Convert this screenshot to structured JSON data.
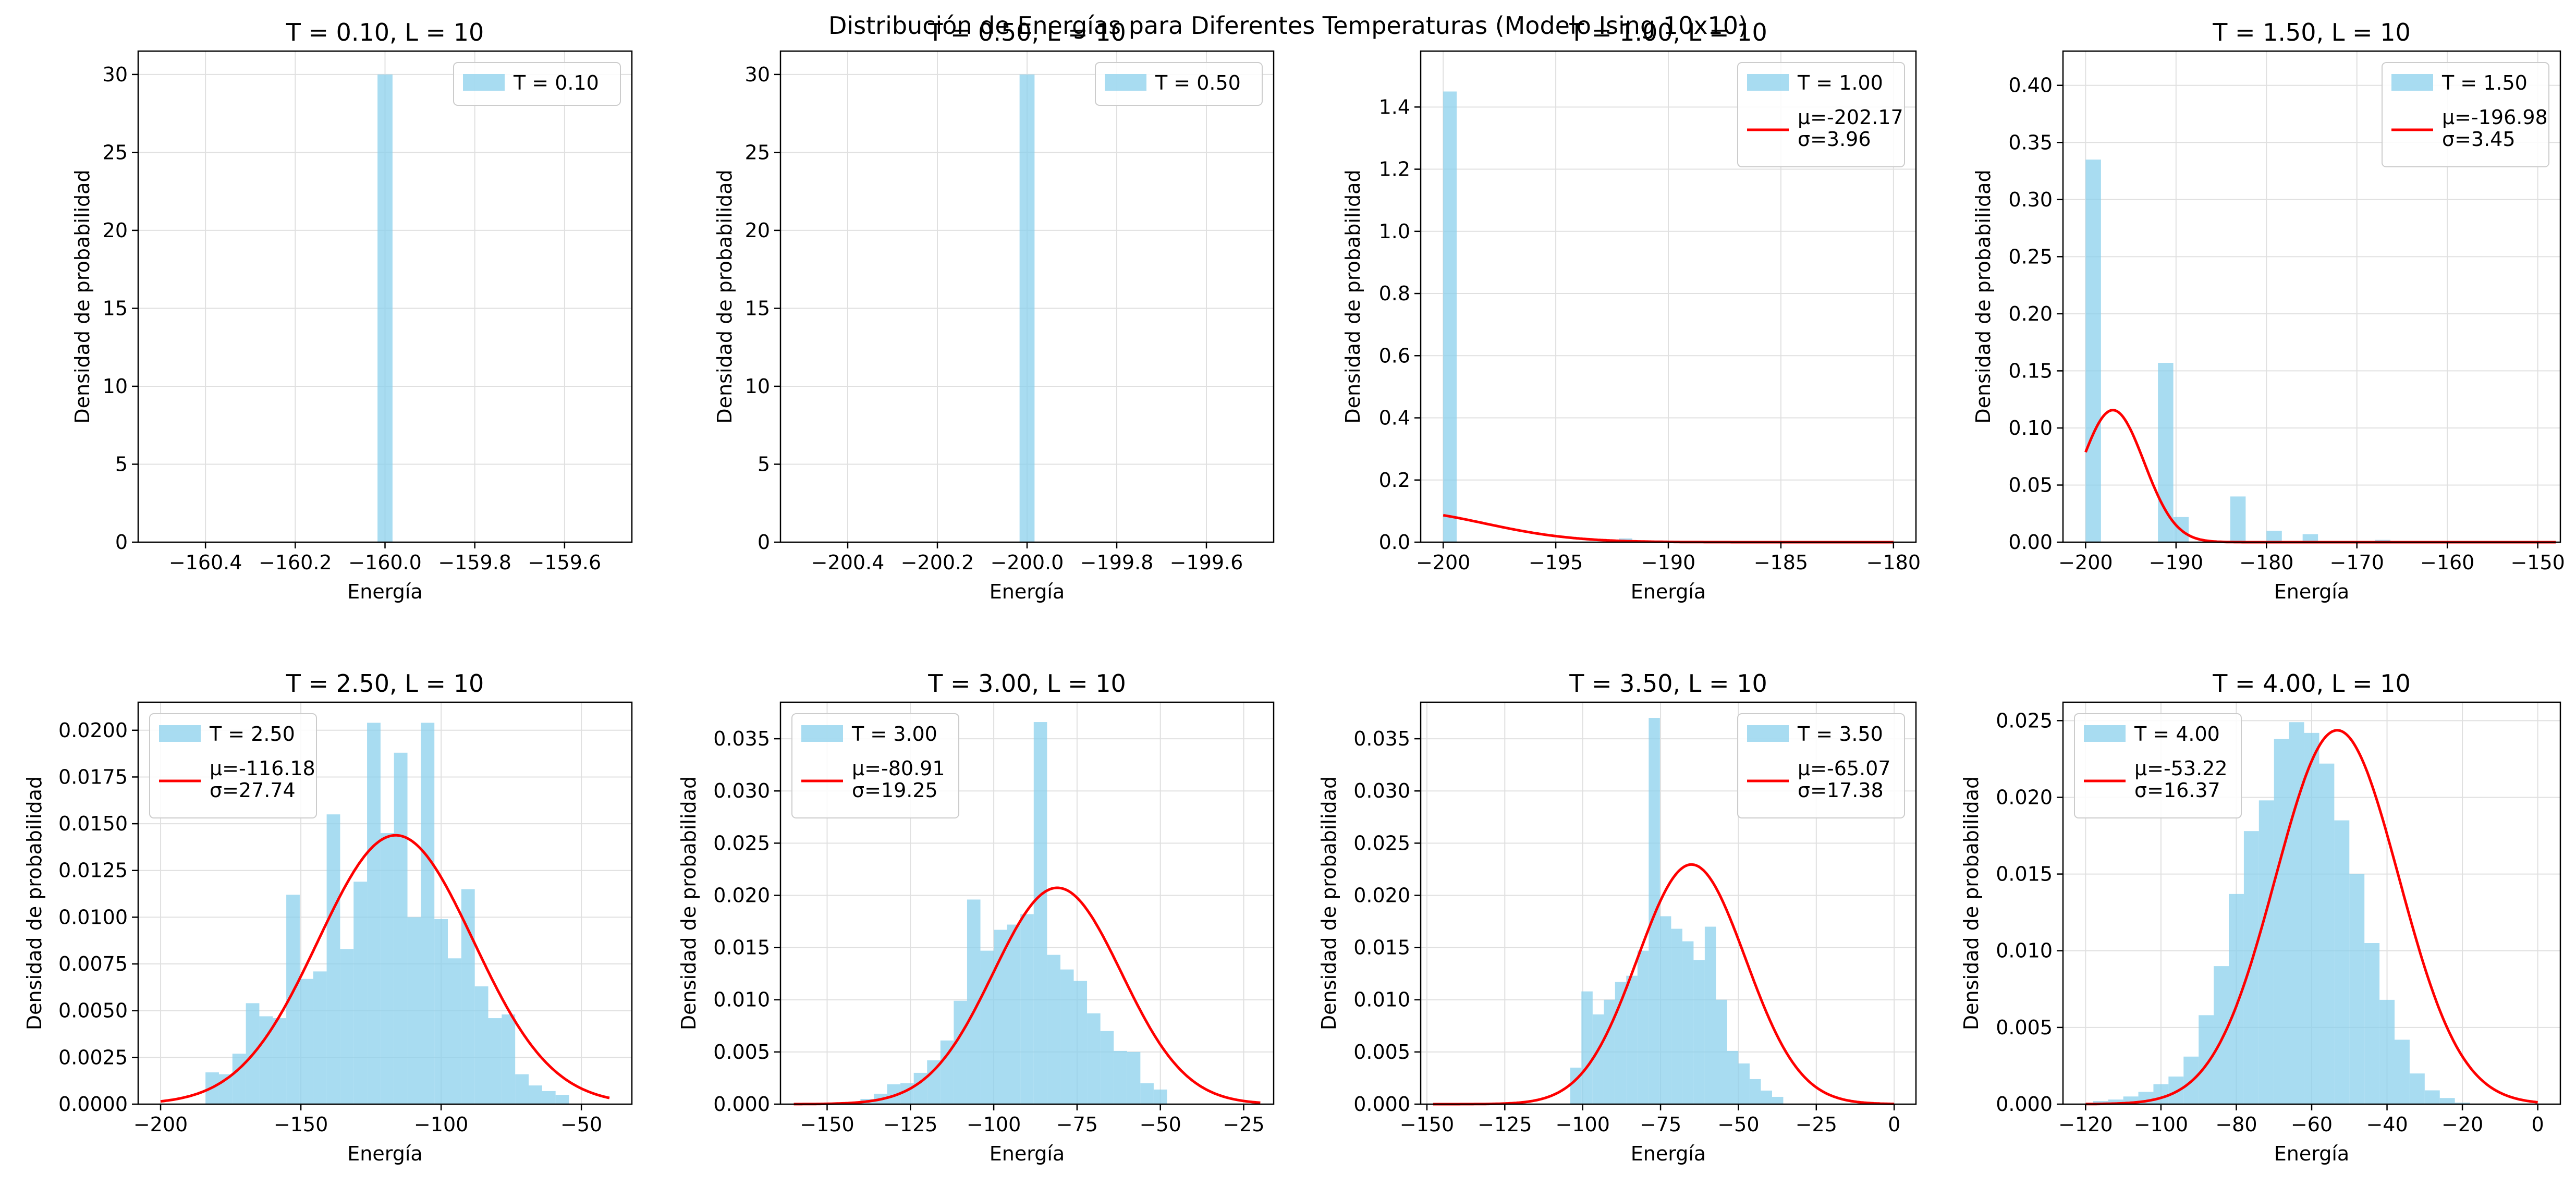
{
  "figure": {
    "suptitle": "Distribución de Energías para Diferentes Temperaturas (Modelo Ising 10x10)",
    "colors": {
      "bars": "#87CEEB",
      "fit_line": "#FF0000",
      "grid": "#E0E0E0"
    }
  },
  "chart_data": [
    {
      "type": "bar",
      "title": "T = 0.10, L = 10",
      "xlabel": "Energía",
      "ylabel": "Densidad de probabilidad",
      "xlim": [
        -160.55,
        -159.45
      ],
      "ylim": [
        0,
        31.5
      ],
      "xticks": [
        -160.4,
        -160.2,
        -160.0,
        -159.8,
        -159.6
      ],
      "xtick_labels": [
        "−160.4",
        "−160.2",
        "−160.0",
        "−159.8",
        "−159.6"
      ],
      "yticks": [
        0,
        5,
        10,
        15,
        20,
        25,
        30
      ],
      "ytick_labels": [
        "0",
        "5",
        "10",
        "15",
        "20",
        "25",
        "30"
      ],
      "legend": {
        "position": "upper-right",
        "hist_label": "T = 0.10"
      },
      "histogram": {
        "bins": [
          [
            -160.0167,
            -159.9833,
            30
          ]
        ]
      }
    },
    {
      "type": "bar",
      "title": "T = 0.50, L = 10",
      "xlabel": "Energía",
      "ylabel": "Densidad de probabilidad",
      "xlim": [
        -200.55,
        -199.45
      ],
      "ylim": [
        0,
        31.5
      ],
      "xticks": [
        -200.4,
        -200.2,
        -200.0,
        -199.8,
        -199.6
      ],
      "xtick_labels": [
        "−200.4",
        "−200.2",
        "−200.0",
        "−199.8",
        "−199.6"
      ],
      "yticks": [
        0,
        5,
        10,
        15,
        20,
        25,
        30
      ],
      "ytick_labels": [
        "0",
        "5",
        "10",
        "15",
        "20",
        "25",
        "30"
      ],
      "legend": {
        "position": "upper-right",
        "hist_label": "T = 0.50"
      },
      "histogram": {
        "bins": [
          [
            -200.0167,
            -199.9833,
            30
          ]
        ]
      }
    },
    {
      "type": "bar",
      "title": "T = 1.00, L = 10",
      "xlabel": "Energía",
      "ylabel": "Densidad de probabilidad",
      "xlim": [
        -201.0,
        -179.0
      ],
      "ylim": [
        0,
        1.58
      ],
      "xticks": [
        -200,
        -195,
        -190,
        -185,
        -180
      ],
      "xtick_labels": [
        "−200",
        "−195",
        "−190",
        "−185",
        "−180"
      ],
      "yticks": [
        0,
        0.2,
        0.4,
        0.6,
        0.8,
        1.0,
        1.2,
        1.4
      ],
      "ytick_labels": [
        "0.0",
        "0.2",
        "0.4",
        "0.6",
        "0.8",
        "1.0",
        "1.2",
        "1.4"
      ],
      "legend": {
        "position": "upper-right",
        "hist_label": "T = 1.00",
        "fit_label": [
          "μ=-202.17",
          "σ=3.96"
        ]
      },
      "histogram": {
        "bins": [
          [
            -200.0,
            -199.4,
            1.45
          ],
          [
            -192.2,
            -191.6,
            0.012
          ]
        ]
      },
      "fit": {
        "mu": -202.17,
        "sigma": 3.96,
        "x_range": [
          -200,
          -180
        ]
      }
    },
    {
      "type": "bar",
      "title": "T = 1.50, L = 10",
      "xlabel": "Energía",
      "ylabel": "Densidad de probabilidad",
      "xlim": [
        -202.5,
        -147.5
      ],
      "ylim": [
        0,
        0.43
      ],
      "xticks": [
        -200,
        -190,
        -180,
        -170,
        -160,
        -150
      ],
      "xtick_labels": [
        "−200",
        "−190",
        "−180",
        "−170",
        "−160",
        "−150"
      ],
      "yticks": [
        0,
        0.05,
        0.1,
        0.15,
        0.2,
        0.25,
        0.3,
        0.35,
        0.4
      ],
      "ytick_labels": [
        "0.00",
        "0.05",
        "0.10",
        "0.15",
        "0.20",
        "0.25",
        "0.30",
        "0.35",
        "0.40"
      ],
      "legend": {
        "position": "upper-right",
        "hist_label": "T = 1.50",
        "fit_label": [
          "μ=-196.98",
          "σ=3.45"
        ]
      },
      "histogram": {
        "bins": [
          [
            -200.0,
            -198.3,
            0.335
          ],
          [
            -192.0,
            -190.3,
            0.157
          ],
          [
            -190.3,
            -188.6,
            0.022
          ],
          [
            -184.0,
            -182.3,
            0.04
          ],
          [
            -180.0,
            -178.3,
            0.01
          ],
          [
            -176.0,
            -174.3,
            0.007
          ],
          [
            -168.0,
            -166.3,
            0.002
          ]
        ]
      },
      "fit": {
        "mu": -196.98,
        "sigma": 3.45,
        "x_range": [
          -200,
          -148
        ]
      }
    },
    {
      "type": "bar",
      "title": "T = 2.50, L = 10",
      "xlabel": "Energía",
      "ylabel": "Densidad de probabilidad",
      "xlim": [
        -208.0,
        -32.0
      ],
      "ylim": [
        0,
        0.0215
      ],
      "xticks": [
        -200,
        -150,
        -100,
        -50
      ],
      "xtick_labels": [
        "−200",
        "−150",
        "−100",
        "−50"
      ],
      "yticks": [
        0,
        0.0025,
        0.005,
        0.0075,
        0.01,
        0.0125,
        0.015,
        0.0175,
        0.02
      ],
      "ytick_labels": [
        "0.0000",
        "0.0025",
        "0.0050",
        "0.0075",
        "0.0100",
        "0.0125",
        "0.0150",
        "0.0175",
        "0.0200"
      ],
      "legend": {
        "position": "upper-left",
        "hist_label": "T = 2.50",
        "fit_label": [
          "μ=-116.18",
          "σ=27.74"
        ]
      },
      "histogram": {
        "start": -184,
        "width": 4.8,
        "values": [
          0.0017,
          0.0016,
          0.0027,
          0.0054,
          0.0047,
          0.0046,
          0.0112,
          0.0067,
          0.0071,
          0.0155,
          0.0083,
          0.0119,
          0.0204,
          0.0145,
          0.0188,
          0.01,
          0.0204,
          0.0099,
          0.0078,
          0.0115,
          0.0063,
          0.0046,
          0.0048,
          0.0016,
          0.001,
          0.0007,
          0.0005
        ]
      },
      "fit": {
        "mu": -116.18,
        "sigma": 27.74,
        "x_range": [
          -200,
          -40
        ]
      }
    },
    {
      "type": "bar",
      "title": "T = 3.00, L = 10",
      "xlabel": "Energía",
      "ylabel": "Densidad de probabilidad",
      "xlim": [
        -164.0,
        -16.0
      ],
      "ylim": [
        0,
        0.0385
      ],
      "xticks": [
        -150,
        -125,
        -100,
        -75,
        -50,
        -25
      ],
      "xtick_labels": [
        "−150",
        "−125",
        "−100",
        "−75",
        "−50",
        "−25"
      ],
      "yticks": [
        0,
        0.005,
        0.01,
        0.015,
        0.02,
        0.025,
        0.03,
        0.035
      ],
      "ytick_labels": [
        "0.000",
        "0.005",
        "0.010",
        "0.015",
        "0.020",
        "0.025",
        "0.030",
        "0.035"
      ],
      "legend": {
        "position": "upper-left",
        "hist_label": "T = 3.00",
        "fit_label": [
          "μ=-80.91",
          "σ=19.25"
        ]
      },
      "histogram": {
        "start": -140,
        "width": 4.0,
        "values": [
          0.0005,
          0.001,
          0.0019,
          0.002,
          0.003,
          0.0042,
          0.0061,
          0.0099,
          0.0196,
          0.0147,
          0.0167,
          0.0172,
          0.0182,
          0.0366,
          0.0143,
          0.0129,
          0.0118,
          0.0087,
          0.007,
          0.0051,
          0.005,
          0.002,
          0.0014
        ]
      },
      "fit": {
        "mu": -80.91,
        "sigma": 19.25,
        "x_range": [
          -160,
          -20
        ]
      }
    },
    {
      "type": "bar",
      "title": "T = 3.50, L = 10",
      "xlabel": "Energía",
      "ylabel": "Densidad de probabilidad",
      "xlim": [
        -152.0,
        7.0
      ],
      "ylim": [
        0,
        0.0385
      ],
      "xticks": [
        -150,
        -125,
        -100,
        -75,
        -50,
        -25,
        0
      ],
      "xtick_labels": [
        "−150",
        "−125",
        "−100",
        "−75",
        "−50",
        "−25",
        "0"
      ],
      "yticks": [
        0,
        0.005,
        0.01,
        0.015,
        0.02,
        0.025,
        0.03,
        0.035
      ],
      "ytick_labels": [
        "0.000",
        "0.005",
        "0.010",
        "0.015",
        "0.020",
        "0.025",
        "0.030",
        "0.035"
      ],
      "legend": {
        "position": "upper-right",
        "hist_label": "T = 3.50",
        "fit_label": [
          "μ=-65.07",
          "σ=17.38"
        ]
      },
      "histogram": {
        "start": -104,
        "width": 3.6,
        "values": [
          0.0035,
          0.0108,
          0.0086,
          0.01,
          0.0117,
          0.0123,
          0.0147,
          0.037,
          0.018,
          0.0168,
          0.0156,
          0.0138,
          0.017,
          0.01,
          0.0051,
          0.0039,
          0.0024,
          0.0013,
          0.0007
        ]
      },
      "fit": {
        "mu": -65.07,
        "sigma": 17.38,
        "x_range": [
          -148,
          0
        ]
      }
    },
    {
      "type": "bar",
      "title": "T = 4.00, L = 10",
      "xlabel": "Energía",
      "ylabel": "Densidad de probabilidad",
      "xlim": [
        -126.0,
        6.0
      ],
      "ylim": [
        0,
        0.0262
      ],
      "xticks": [
        -120,
        -100,
        -80,
        -60,
        -40,
        -20,
        0
      ],
      "xtick_labels": [
        "−120",
        "−100",
        "−80",
        "−60",
        "−40",
        "−20",
        "0"
      ],
      "yticks": [
        0,
        0.005,
        0.01,
        0.015,
        0.02,
        0.025
      ],
      "ytick_labels": [
        "0.000",
        "0.005",
        "0.010",
        "0.015",
        "0.020",
        "0.025"
      ],
      "legend": {
        "position": "upper-left",
        "hist_label": "T = 4.00",
        "fit_label": [
          "μ=-53.22",
          "σ=16.37"
        ]
      },
      "histogram": {
        "start": -118,
        "width": 4.0,
        "values": [
          0.0002,
          0.0003,
          0.0005,
          0.0008,
          0.0013,
          0.0018,
          0.0031,
          0.0058,
          0.009,
          0.0137,
          0.0178,
          0.0198,
          0.0238,
          0.0249,
          0.0242,
          0.0222,
          0.0185,
          0.015,
          0.0105,
          0.0068,
          0.0042,
          0.002,
          0.0009,
          0.0004,
          0.0001
        ]
      },
      "fit": {
        "mu": -53.22,
        "sigma": 16.37,
        "x_range": [
          -120,
          0
        ]
      }
    }
  ]
}
